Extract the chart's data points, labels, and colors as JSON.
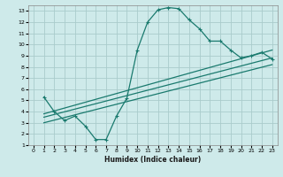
{
  "xlabel": "Humidex (Indice chaleur)",
  "bg_color": "#ceeaea",
  "grid_color": "#aacccc",
  "line_color": "#1a7a6e",
  "xlim": [
    -0.5,
    23.5
  ],
  "ylim": [
    1,
    13.5
  ],
  "xticks": [
    0,
    1,
    2,
    3,
    4,
    5,
    6,
    7,
    8,
    9,
    10,
    11,
    12,
    13,
    14,
    15,
    16,
    17,
    18,
    19,
    20,
    21,
    22,
    23
  ],
  "yticks": [
    1,
    2,
    3,
    4,
    5,
    6,
    7,
    8,
    9,
    10,
    11,
    12,
    13
  ],
  "line1_x": [
    1,
    2,
    3,
    4,
    5,
    6,
    7,
    8,
    9,
    10,
    11,
    12,
    13,
    14,
    15,
    16,
    17,
    18,
    19,
    20,
    21,
    22,
    23
  ],
  "line1_y": [
    5.3,
    4.0,
    3.2,
    3.6,
    2.7,
    1.5,
    1.5,
    3.6,
    5.2,
    9.5,
    12.0,
    13.1,
    13.3,
    13.2,
    12.2,
    11.4,
    10.3,
    10.3,
    9.5,
    8.8,
    9.0,
    9.3,
    8.7
  ],
  "line2_x": [
    1,
    23
  ],
  "line2_y": [
    3.8,
    9.5
  ],
  "line3_x": [
    1,
    23
  ],
  "line3_y": [
    3.5,
    8.8
  ],
  "line4_x": [
    1,
    23
  ],
  "line4_y": [
    3.0,
    8.2
  ]
}
